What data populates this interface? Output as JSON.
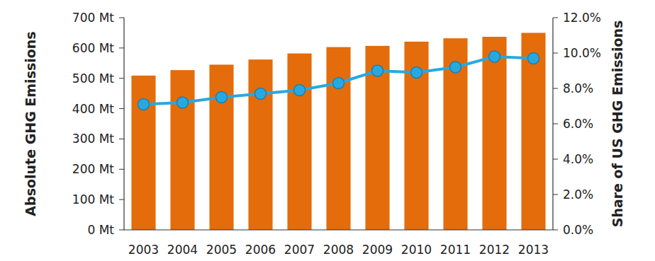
{
  "chart_data": {
    "type": "bar",
    "categories": [
      "2003",
      "2004",
      "2005",
      "2006",
      "2007",
      "2008",
      "2009",
      "2010",
      "2011",
      "2012",
      "2013"
    ],
    "series": [
      {
        "type": "bar",
        "color": "#e46c0a",
        "values": [
          509,
          527,
          545,
          562,
          582,
          603,
          607,
          621,
          632,
          637,
          650
        ]
      },
      {
        "type": "line",
        "axis": "y2",
        "color": "#29a8e0",
        "marker": "circle",
        "line_style": "solid",
        "values": [
          7.1,
          7.2,
          7.5,
          7.7,
          7.9,
          8.3,
          9.0,
          8.9,
          9.2,
          9.8,
          9.7
        ]
      }
    ],
    "y_label": "Absolute GHG Emissions",
    "y2_label": "Share of US GHG Emissions",
    "ylim": [
      0,
      700
    ],
    "yticks": [
      {
        "value": 0,
        "label": "0 Mt"
      },
      {
        "value": 100,
        "label": "100 Mt"
      },
      {
        "value": 200,
        "label": "200 Mt"
      },
      {
        "value": 300,
        "label": "300 Mt"
      },
      {
        "value": 400,
        "label": "400 Mt"
      },
      {
        "value": 500,
        "label": "500 Mt"
      },
      {
        "value": 600,
        "label": "600 Mt"
      },
      {
        "value": 700,
        "label": "700 Mt"
      }
    ],
    "y2lim": [
      0,
      12
    ],
    "y2ticks": [
      {
        "value": 0,
        "label": "0.0%"
      },
      {
        "value": 2,
        "label": "2.0%"
      },
      {
        "value": 4,
        "label": "4.0%"
      },
      {
        "value": 6,
        "label": "6.0%"
      },
      {
        "value": 8,
        "label": "8.0%"
      },
      {
        "value": 10,
        "label": "10.0%"
      },
      {
        "value": 12,
        "label": "12.0%"
      }
    ],
    "grid": false
  }
}
